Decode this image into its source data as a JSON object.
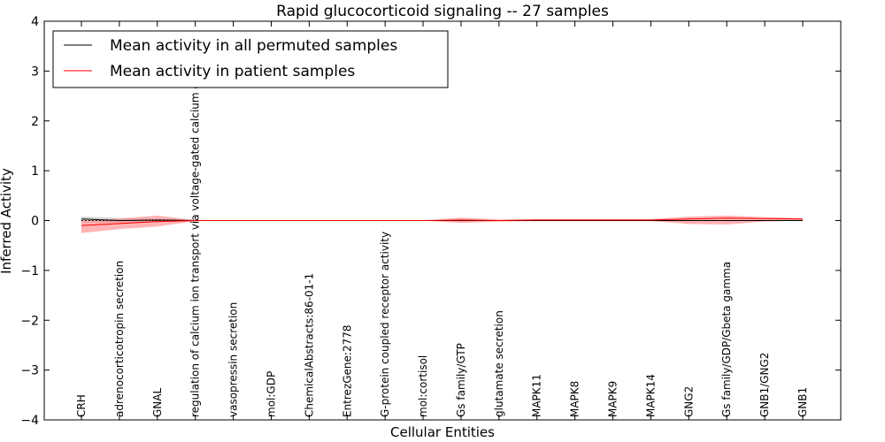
{
  "chart_data": {
    "type": "line",
    "title": "Rapid glucocorticoid signaling -- 27 samples",
    "xlabel": "Cellular Entities",
    "ylabel": "Inferred Activity",
    "ylim": [
      -4,
      4
    ],
    "yticks": [
      "−4",
      "−3",
      "−2",
      "−1",
      "0",
      "1",
      "2",
      "3",
      "4"
    ],
    "ytick_values": [
      -4,
      -3,
      -2,
      -1,
      0,
      1,
      2,
      3,
      4
    ],
    "grid": false,
    "legend_position": "top-left",
    "categories": [
      "CRH",
      "adrenocorticotropin secretion",
      "GNAL",
      "regulation of calcium ion transport via voltage-gated calcium channel",
      "vasopressin secretion",
      "mol:GDP",
      "ChemicalAbstracts:86-01-1",
      "EntrezGene:2778",
      "G-protein coupled receptor activity",
      "mol:cortisol",
      "Gs family/GTP",
      "glutamate secretion",
      "MAPK11",
      "MAPK8",
      "MAPK9",
      "MAPK14",
      "GNG2",
      "Gs family/GDP/Gbeta gamma",
      "GNB1/GNG2",
      "GNB1"
    ],
    "series": [
      {
        "name": "Mean activity in all permuted samples",
        "color": "#000000",
        "values": [
          0.03,
          0.0,
          0.01,
          0.0,
          0.0,
          0.0,
          0.0,
          0.0,
          0.0,
          0.0,
          0.0,
          0.0,
          0.0,
          0.0,
          0.0,
          0.0,
          0.0,
          0.0,
          0.0,
          0.0
        ],
        "upper": [
          0.08,
          0.05,
          0.04,
          0.01,
          0.01,
          0.01,
          0.01,
          0.01,
          0.01,
          0.01,
          0.01,
          0.01,
          0.01,
          0.01,
          0.01,
          0.01,
          0.01,
          0.01,
          0.01,
          0.01
        ],
        "lower": [
          -0.03,
          -0.04,
          -0.02,
          -0.01,
          -0.01,
          -0.01,
          -0.01,
          -0.01,
          -0.01,
          -0.01,
          -0.01,
          -0.01,
          -0.01,
          -0.01,
          -0.01,
          -0.01,
          -0.01,
          -0.01,
          -0.01,
          -0.01
        ]
      },
      {
        "name": "Mean activity in patient samples",
        "color": "#ff0000",
        "band_color": "#ff8080",
        "values": [
          -0.1,
          -0.06,
          -0.02,
          0.0,
          0.0,
          0.0,
          0.0,
          0.0,
          0.0,
          0.0,
          0.01,
          0.0,
          0.01,
          0.01,
          0.01,
          0.01,
          0.03,
          0.05,
          0.04,
          0.03
        ],
        "upper": [
          0.0,
          0.04,
          0.1,
          0.01,
          0.0,
          0.0,
          0.0,
          0.0,
          0.0,
          0.0,
          0.06,
          0.02,
          0.03,
          0.03,
          0.03,
          0.03,
          0.08,
          0.1,
          0.07,
          0.05
        ],
        "lower": [
          -0.25,
          -0.17,
          -0.12,
          -0.01,
          0.0,
          0.0,
          0.0,
          0.0,
          0.0,
          0.0,
          -0.05,
          -0.02,
          -0.01,
          -0.01,
          -0.01,
          -0.01,
          -0.07,
          -0.08,
          -0.02,
          0.0
        ]
      }
    ],
    "zero_line": {
      "color": "#000000",
      "style": "dotted"
    }
  }
}
